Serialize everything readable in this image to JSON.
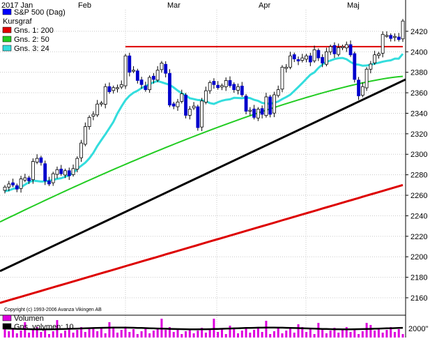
{
  "chart_data": {
    "type": "candlestick",
    "title": "S&P 500 (Dag)",
    "legend": [
      {
        "label": "S&P 500 (Dag)",
        "color": "#0000ff"
      },
      {
        "label": "Kursgraf",
        "color": ""
      },
      {
        "label": "Gns. 1: 200",
        "color": "#e00000"
      },
      {
        "label": "Gns. 2: 50",
        "color": "#22cc22"
      },
      {
        "label": "Gns. 3: 24",
        "color": "#33dddd"
      }
    ],
    "x_labels": [
      "2017 Jan",
      "Feb",
      "Mar",
      "Apr",
      "Maj"
    ],
    "y_ticks": [
      2160,
      2180,
      2200,
      2220,
      2240,
      2260,
      2280,
      2300,
      2320,
      2340,
      2360,
      2380,
      2400,
      2420
    ],
    "ylim": [
      2143,
      2441
    ],
    "closes": [
      2268,
      2271,
      2270,
      2266,
      2276,
      2277,
      2274,
      2293,
      2296,
      2292,
      2274,
      2271,
      2281,
      2285,
      2281,
      2284,
      2279,
      2286,
      2296,
      2311,
      2327,
      2336,
      2339,
      2349,
      2350,
      2366,
      2361,
      2365,
      2365,
      2368,
      2396,
      2380,
      2382,
      2372,
      2368,
      2363,
      2375,
      2373,
      2382,
      2389,
      2379,
      2348,
      2347,
      2351,
      2359,
      2338,
      2344,
      2347,
      2326,
      2352,
      2362,
      2370,
      2368,
      2365,
      2367,
      2372,
      2367,
      2363,
      2366,
      2358,
      2342,
      2343,
      2336,
      2344,
      2339,
      2356,
      2339,
      2358,
      2363,
      2385,
      2385,
      2396,
      2393,
      2391,
      2394,
      2396,
      2390,
      2402,
      2394,
      2389,
      2400,
      2405,
      2398,
      2404,
      2405,
      2407,
      2397,
      2373,
      2357,
      2366,
      2383,
      2388,
      2397,
      2398,
      2417,
      2416,
      2413,
      2415,
      2412,
      2430
    ],
    "ma200": [
      2155,
      2270
    ],
    "ma50": [
      2234,
      2376
    ],
    "ma24": [
      2264,
      2398
    ],
    "trendline": [
      2186,
      2373
    ],
    "resistance": 2405,
    "volume_legend": [
      "Volumen",
      "Gns. volymen: 10"
    ],
    "volume_axis_label": "2000\"",
    "copyright": "Copyright (c) 1993-2006 Avanza Vikingen AB"
  }
}
